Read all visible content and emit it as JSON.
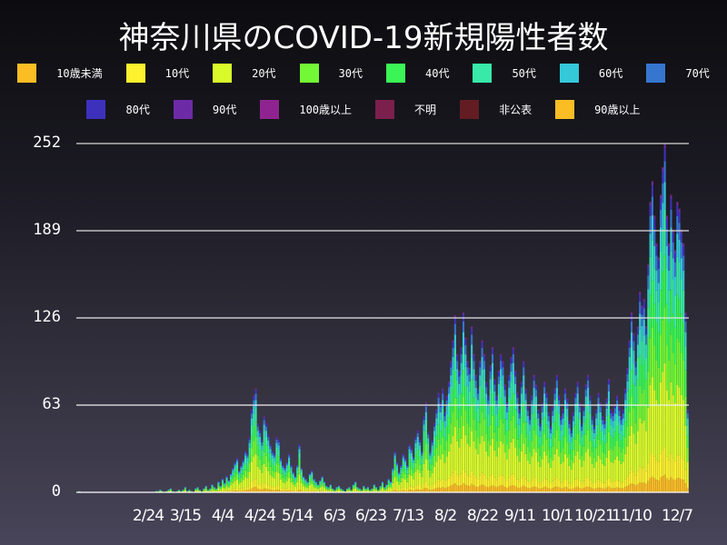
{
  "title": "神奈川県のCOVID-19新規陽性者数",
  "legend": {
    "row1": [
      {
        "label": "10歳未満",
        "color": "#fbbd24"
      },
      {
        "label": "10代",
        "color": "#fdf22d"
      },
      {
        "label": "20代",
        "color": "#d9fb2a"
      },
      {
        "label": "30代",
        "color": "#73f835"
      },
      {
        "label": "40代",
        "color": "#3af555"
      },
      {
        "label": "50代",
        "color": "#38e9a8"
      },
      {
        "label": "60代",
        "color": "#35c8d9"
      },
      {
        "label": "70代",
        "color": "#3676cf"
      }
    ],
    "row2": [
      {
        "label": "80代",
        "color": "#3d30bc"
      },
      {
        "label": "90代",
        "color": "#6d2aa6"
      },
      {
        "label": "100歳以上",
        "color": "#8f2490"
      },
      {
        "label": "不明",
        "color": "#7b1f4d"
      },
      {
        "label": "非公表",
        "color": "#621c22"
      },
      {
        "label": "90歳以上",
        "color": "#fbbd24"
      }
    ]
  },
  "chart_data": {
    "type": "bar",
    "stacked": true,
    "title": "神奈川県のCOVID-19新規陽性者数",
    "xlabel": "",
    "ylabel": "",
    "ylim": [
      0,
      252
    ],
    "yticks": [
      0,
      63,
      126,
      189,
      252
    ],
    "grid": true,
    "legend_position": "top",
    "xtick_labels": [
      "2/24",
      "3/15",
      "4/4",
      "4/24",
      "5/14",
      "6/3",
      "6/23",
      "7/13",
      "8/2",
      "8/22",
      "9/11",
      "10/1",
      "10/21",
      "11/10",
      "12/7"
    ],
    "series_names": [
      "10歳未満",
      "10代",
      "20代",
      "30代",
      "40代",
      "50代",
      "60代",
      "70代",
      "80代",
      "90代",
      "100歳以上",
      "不明",
      "非公表",
      "90歳以上"
    ],
    "x_start": "1/16",
    "x_end": "12/11",
    "daily_totals": [
      0,
      1,
      0,
      0,
      0,
      0,
      0,
      0,
      0,
      0,
      0,
      0,
      0,
      0,
      0,
      0,
      0,
      0,
      0,
      0,
      0,
      0,
      0,
      0,
      0,
      0,
      0,
      0,
      0,
      0,
      0,
      0,
      0,
      0,
      0,
      0,
      0,
      0,
      1,
      1,
      2,
      1,
      0,
      1,
      2,
      3,
      1,
      0,
      1,
      2,
      1,
      2,
      4,
      1,
      2,
      1,
      0,
      3,
      4,
      2,
      1,
      3,
      5,
      2,
      3,
      6,
      4,
      3,
      8,
      5,
      10,
      7,
      12,
      9,
      14,
      18,
      22,
      25,
      16,
      20,
      24,
      30,
      28,
      40,
      60,
      70,
      75,
      50,
      45,
      38,
      55,
      50,
      42,
      35,
      30,
      28,
      40,
      38,
      25,
      20,
      18,
      22,
      28,
      20,
      15,
      12,
      20,
      35,
      18,
      12,
      10,
      8,
      14,
      16,
      10,
      8,
      6,
      9,
      12,
      8,
      5,
      4,
      6,
      3,
      2,
      4,
      5,
      3,
      2,
      1,
      3,
      4,
      2,
      6,
      8,
      4,
      3,
      2,
      5,
      3,
      4,
      2,
      3,
      6,
      4,
      2,
      5,
      8,
      4,
      6,
      10,
      8,
      18,
      30,
      22,
      15,
      20,
      28,
      25,
      20,
      35,
      32,
      26,
      40,
      45,
      38,
      30,
      55,
      65,
      44,
      30,
      38,
      50,
      60,
      72,
      65,
      75,
      58,
      70,
      80,
      95,
      110,
      128,
      100,
      88,
      105,
      130,
      112,
      95,
      90,
      120,
      100,
      85,
      75,
      95,
      110,
      100,
      80,
      70,
      92,
      105,
      82,
      70,
      88,
      100,
      95,
      78,
      65,
      85,
      98,
      105,
      88,
      72,
      60,
      80,
      95,
      75,
      62,
      55,
      70,
      85,
      78,
      60,
      50,
      65,
      80,
      72,
      58,
      48,
      62,
      75,
      85,
      70,
      55,
      60,
      75,
      68,
      52,
      45,
      58,
      72,
      80,
      65,
      50,
      62,
      78,
      85,
      70,
      55,
      48,
      60,
      72,
      65,
      55,
      52,
      68,
      82,
      60,
      58,
      64,
      70,
      62,
      55,
      60,
      75,
      90,
      110,
      130,
      115,
      95,
      120,
      145,
      135,
      140,
      120,
      165,
      210,
      225,
      200,
      180,
      170,
      215,
      235,
      252,
      200,
      180,
      215,
      190,
      175,
      210,
      205,
      190,
      180,
      130,
      60
    ]
  },
  "y_axis": {
    "ticks": [
      "0",
      "63",
      "126",
      "189",
      "252"
    ]
  },
  "x_axis": {
    "ticks": [
      "2/24",
      "3/15",
      "4/4",
      "4/24",
      "5/14",
      "6/3",
      "6/23",
      "7/13",
      "8/2",
      "8/22",
      "9/11",
      "10/1",
      "10/21",
      "11/10",
      "12/7"
    ]
  }
}
